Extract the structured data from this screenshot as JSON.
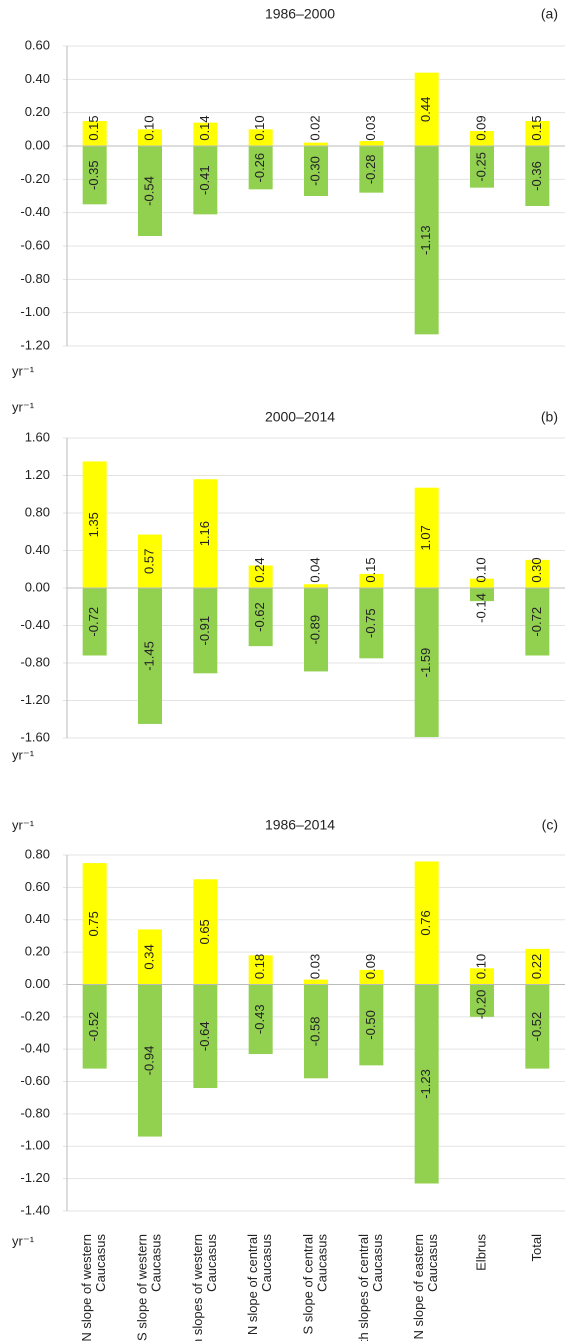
{
  "chart_data": [
    {
      "type": "bar",
      "title": "1986–2000",
      "panel_label": "(a)",
      "ylabel_bottom": "yr⁻¹",
      "ylim": [
        -1.2,
        0.6
      ],
      "yticks": [
        {
          "value": -1.2,
          "label": "-1.20"
        },
        {
          "value": -1.0,
          "label": "-1.00"
        },
        {
          "value": -0.8,
          "label": "-0.80"
        },
        {
          "value": -0.6,
          "label": "-0.60"
        },
        {
          "value": -0.4,
          "label": "-0.40"
        },
        {
          "value": -0.2,
          "label": "-0.20"
        },
        {
          "value": 0,
          "label": "0.00"
        },
        {
          "value": 0.2,
          "label": "0.20"
        },
        {
          "value": 0.4,
          "label": "0.40"
        },
        {
          "value": 0.6,
          "label": "0.60"
        }
      ],
      "grid": true,
      "series": [
        {
          "color": "#ffff00",
          "values": [
            0.15,
            0.1,
            0.14,
            0.1,
            0.02,
            0.03,
            0.44,
            0.09,
            0.15
          ],
          "value_labels": [
            "0.15",
            "0.10",
            "0.14",
            "0.10",
            "0.02",
            "0.03",
            "0.44",
            "0.09",
            "0.15"
          ]
        },
        {
          "color": "#92d050",
          "values": [
            -0.35,
            -0.54,
            -0.41,
            -0.26,
            -0.3,
            -0.28,
            -1.13,
            -0.25,
            -0.36
          ],
          "value_labels": [
            "-0.35",
            "-0.54",
            "-0.41",
            "-0.26",
            "-0.30",
            "-0.28",
            "-1.13",
            "-0.25",
            "-0.36"
          ]
        }
      ]
    },
    {
      "type": "bar",
      "title": "2000–2014",
      "panel_label": "(b)",
      "ylabel_top": "yr⁻¹",
      "ylabel_bottom": "yr⁻¹",
      "ylim": [
        -1.6,
        1.6
      ],
      "yticks": [
        {
          "value": -1.6,
          "label": "-1.60"
        },
        {
          "value": -1.2,
          "label": "-1.20"
        },
        {
          "value": -0.8,
          "label": "-0.80"
        },
        {
          "value": -0.4,
          "label": "-0.40"
        },
        {
          "value": 0,
          "label": "0.00"
        },
        {
          "value": 0.4,
          "label": "0.40"
        },
        {
          "value": 0.8,
          "label": "0.80"
        },
        {
          "value": 1.2,
          "label": "1.20"
        },
        {
          "value": 1.6,
          "label": "1.60"
        }
      ],
      "grid": true,
      "series": [
        {
          "color": "#ffff00",
          "values": [
            1.35,
            0.57,
            1.16,
            0.24,
            0.04,
            0.15,
            1.07,
            0.1,
            0.3
          ],
          "value_labels": [
            "1.35",
            "0.57",
            "1.16",
            "0.24",
            "0.04",
            "0.15",
            "1.07",
            "0.10",
            "0.30"
          ]
        },
        {
          "color": "#92d050",
          "values": [
            -0.72,
            -1.45,
            -0.91,
            -0.62,
            -0.89,
            -0.75,
            -1.59,
            -0.14,
            -0.72
          ],
          "value_labels": [
            "-0.72",
            "-1.45",
            "-0.91",
            "-0.62",
            "-0.89",
            "-0.75",
            "-1.59",
            "-0.14",
            "-0.72"
          ]
        }
      ]
    },
    {
      "type": "bar",
      "title": "1986–2014",
      "panel_label": "(c)",
      "ylabel_top": "yr⁻¹",
      "ylabel_bottom": "yr⁻¹",
      "categories": [
        [
          "N slope of western",
          "Caucasus"
        ],
        [
          "S slope of western",
          "Caucasus"
        ],
        [
          "Both slopes of western",
          "Caucasus"
        ],
        [
          "N slope of central",
          "Caucasus"
        ],
        [
          "S slope of central",
          "Caucasus"
        ],
        [
          "Both slopes of central",
          "Caucasus"
        ],
        [
          "N slope of eastern",
          "Caucasus"
        ],
        [
          "Elbrus"
        ],
        [
          "Total"
        ]
      ],
      "ylim": [
        -1.4,
        0.8
      ],
      "yticks": [
        {
          "value": -1.4,
          "label": "-1.40"
        },
        {
          "value": -1.2,
          "label": "-1.20"
        },
        {
          "value": -1.0,
          "label": "-1.00"
        },
        {
          "value": -0.8,
          "label": "-0.80"
        },
        {
          "value": -0.6,
          "label": "-0.60"
        },
        {
          "value": -0.4,
          "label": "-0.40"
        },
        {
          "value": -0.2,
          "label": "-0.20"
        },
        {
          "value": 0,
          "label": "0.00"
        },
        {
          "value": 0.2,
          "label": "0.20"
        },
        {
          "value": 0.4,
          "label": "0.40"
        },
        {
          "value": 0.6,
          "label": "0.60"
        },
        {
          "value": 0.8,
          "label": "0.80"
        }
      ],
      "grid": true,
      "series": [
        {
          "color": "#ffff00",
          "values": [
            0.75,
            0.34,
            0.65,
            0.18,
            0.03,
            0.09,
            0.76,
            0.1,
            0.22
          ],
          "value_labels": [
            "0.75",
            "0.34",
            "0.65",
            "0.18",
            "0.03",
            "0.09",
            "0.76",
            "0.10",
            "0.22"
          ]
        },
        {
          "color": "#92d050",
          "values": [
            -0.52,
            -0.94,
            -0.64,
            -0.43,
            -0.58,
            -0.5,
            -1.23,
            -0.2,
            -0.52
          ],
          "value_labels": [
            "-0.52",
            "-0.94",
            "-0.64",
            "-0.43",
            "-0.58",
            "-0.50",
            "-1.23",
            "-0.20",
            "-0.52"
          ]
        }
      ]
    }
  ]
}
